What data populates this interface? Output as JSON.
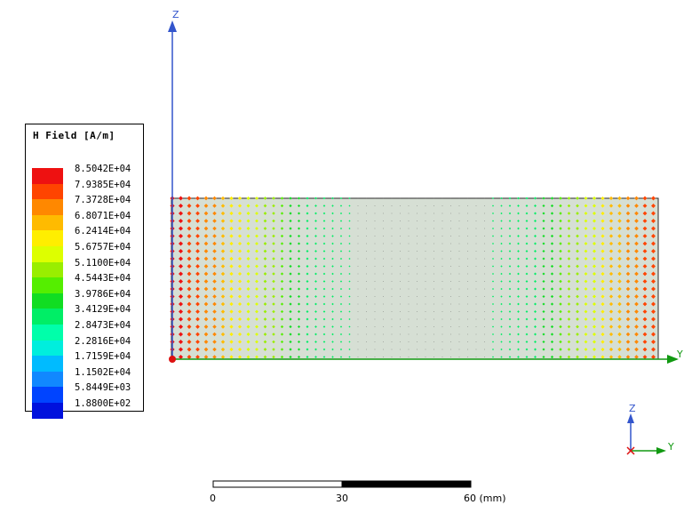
{
  "legend": {
    "title": "H Field [A/m]",
    "values": [
      "8.5042E+04",
      "7.9385E+04",
      "7.3728E+04",
      "6.8071E+04",
      "6.2414E+04",
      "5.6757E+04",
      "5.1100E+04",
      "4.5443E+04",
      "3.9786E+04",
      "3.4129E+04",
      "2.8473E+04",
      "2.2816E+04",
      "1.7159E+04",
      "1.1502E+04",
      "5.8449E+03",
      "1.8800E+02"
    ],
    "colors": [
      "#ee1111",
      "#ff4400",
      "#ff8800",
      "#ffbb00",
      "#ffee00",
      "#ddff00",
      "#99ee00",
      "#55ee00",
      "#11dd22",
      "#00ee66",
      "#00ffaa",
      "#00eedd",
      "#00bbff",
      "#1188ff",
      "#0044ff",
      "#0011dd"
    ]
  },
  "axes": {
    "main": {
      "z_label": "Z",
      "y_label": "Y"
    },
    "triad": {
      "z_label": "Z",
      "y_label": "Y"
    },
    "z_color": "#3355cc",
    "y_color": "#119911",
    "origin_color": "#dd1111"
  },
  "model": {
    "fill_color": "#d6dfd4",
    "outline_color": "#2a2a2a"
  },
  "scale_bar": {
    "labels": [
      "0",
      "30",
      "60 (mm)"
    ]
  }
}
